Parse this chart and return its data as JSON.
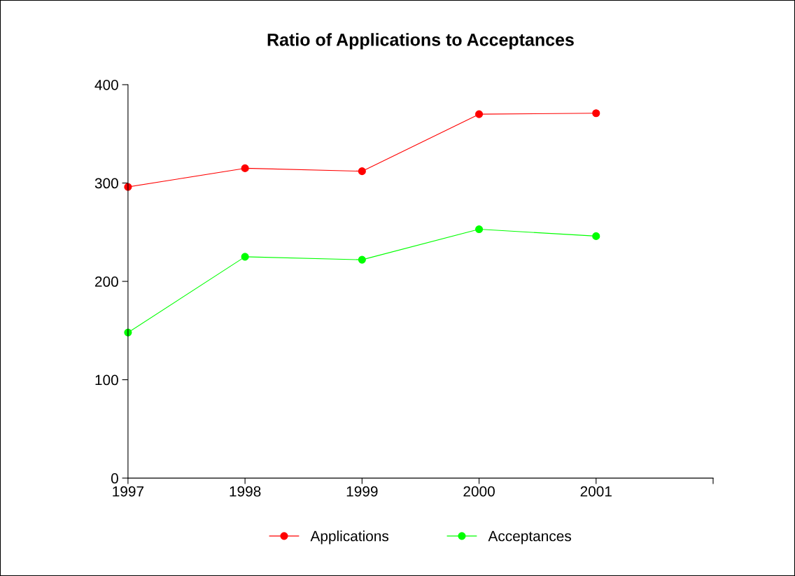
{
  "chart_data": {
    "type": "line",
    "title": "Ratio of Applications to Acceptances",
    "x": [
      1997,
      1998,
      1999,
      2000,
      2001
    ],
    "series": [
      {
        "name": "Applications",
        "color": "#ff0000",
        "values": [
          296,
          315,
          312,
          370,
          371
        ]
      },
      {
        "name": "Acceptances",
        "color": "#00ff00",
        "values": [
          148,
          225,
          222,
          253,
          246
        ]
      }
    ],
    "xlim": [
      1997,
      2002
    ],
    "xticks": [
      1997,
      1998,
      1999,
      2000,
      2001,
      {
        "value": 2002,
        "label": null
      }
    ],
    "ylim": [
      0,
      400
    ],
    "yticks": [
      0,
      100,
      200,
      300,
      400
    ],
    "grid": false,
    "legend": "bottom",
    "marker": "circle",
    "line_style": "solid"
  }
}
